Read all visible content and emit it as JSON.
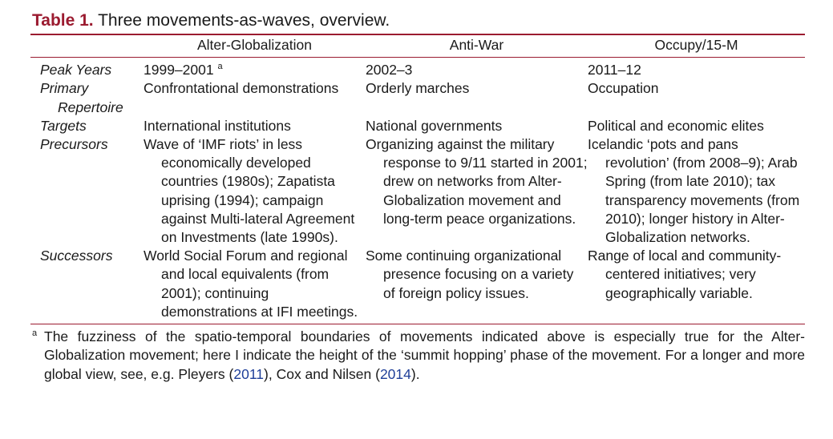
{
  "caption": {
    "label": "Table 1.",
    "text": "Three movements-as-waves, overview."
  },
  "headers": [
    "",
    "Alter-Globalization",
    "Anti-War",
    "Occupy/15-M"
  ],
  "rows": [
    {
      "label": "Peak Years",
      "cells": [
        "1999–2001",
        "2002–3",
        "2011–12"
      ],
      "note_mark": "a"
    },
    {
      "label": "Primary Repertoire",
      "cells": [
        "Confrontational demonstrations",
        "Orderly marches",
        "Occupation"
      ]
    },
    {
      "label": "Targets",
      "cells": [
        "International institutions",
        "National governments",
        "Political and economic elites"
      ]
    },
    {
      "label": "Precursors",
      "cells": [
        "Wave of ‘IMF riots’ in less economically developed countries (1980s); Zapatista uprising (1994); campaign against Multi-lateral Agreement on Investments (late 1990s).",
        "Organizing against the military response to 9/11 started in 2001; drew on networks from Alter-Globalization movement and long-term peace organizations.",
        "Icelandic ‘pots and pans revolution’ (from 2008–9); Arab Spring (from late 2010); tax transparency movements (from 2010); longer history in Alter-Globalization networks."
      ]
    },
    {
      "label": "Successors",
      "cells": [
        "World Social Forum and regional and local equivalents (from 2001); continuing demonstrations at IFI meetings.",
        "Some continuing organizational presence focusing on a variety of foreign policy issues.",
        "Range of local and community-centered initiatives; very geographically variable."
      ]
    }
  ],
  "footnote": {
    "mark": "a",
    "text_before": "The fuzziness of the spatio-temporal boundaries of movements indicated above is especially true for the Alter-Globalization movement; here I indicate the height of the ‘summit hopping’ phase of the movement. For a longer and more global view, see, e.g. Pleyers (",
    "ref1": "2011",
    "text_mid": "), Cox and Nilsen (",
    "ref2": "2014",
    "text_after": ")."
  },
  "colors": {
    "accent": "#9b1b30",
    "link": "#1f3f99"
  }
}
